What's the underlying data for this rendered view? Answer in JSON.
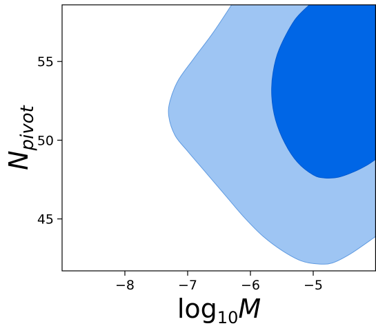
{
  "chart_data": {
    "type": "contour",
    "xlabel": "log₁₀M",
    "ylabel": "N_pivot",
    "xlabel_parts": {
      "base": "log",
      "sub": "10",
      "var": "M"
    },
    "ylabel_parts": {
      "var": "N",
      "sub": "pivot"
    },
    "xlim": [
      -9.0,
      -4.0
    ],
    "ylim": [
      41.7,
      58.6
    ],
    "xticks": [
      -8,
      -7,
      -6,
      -5
    ],
    "yticks": [
      45,
      50,
      55
    ],
    "grid": false,
    "series": [
      {
        "level": "outer",
        "color": "#9ec5f3",
        "edge_color": "#5f9ae0",
        "points": [
          [
            -6.3,
            58.6
          ],
          [
            -6.6,
            56.8
          ],
          [
            -6.9,
            55.2
          ],
          [
            -7.15,
            53.8
          ],
          [
            -7.28,
            52.5
          ],
          [
            -7.3,
            51.5
          ],
          [
            -7.2,
            50.3
          ],
          [
            -7.0,
            49.3
          ],
          [
            -6.7,
            47.9
          ],
          [
            -6.4,
            46.5
          ],
          [
            -6.1,
            45.1
          ],
          [
            -5.8,
            43.9
          ],
          [
            -5.5,
            43.0
          ],
          [
            -5.2,
            42.35
          ],
          [
            -4.95,
            42.15
          ],
          [
            -4.7,
            42.2
          ],
          [
            -4.4,
            42.8
          ],
          [
            -4.0,
            43.9
          ],
          [
            -4.0,
            58.6
          ]
        ]
      },
      {
        "level": "inner",
        "color": "#0066e6",
        "edge_color": "#005ad0",
        "points": [
          [
            -5.06,
            58.6
          ],
          [
            -5.3,
            57.6
          ],
          [
            -5.54,
            55.8
          ],
          [
            -5.64,
            54.3
          ],
          [
            -5.66,
            52.8
          ],
          [
            -5.6,
            51.3
          ],
          [
            -5.45,
            49.8
          ],
          [
            -5.25,
            48.6
          ],
          [
            -5.0,
            47.8
          ],
          [
            -4.82,
            47.6
          ],
          [
            -4.6,
            47.65
          ],
          [
            -4.35,
            48.0
          ],
          [
            -4.15,
            48.4
          ],
          [
            -4.0,
            48.8
          ],
          [
            -4.0,
            58.6
          ]
        ]
      }
    ]
  }
}
